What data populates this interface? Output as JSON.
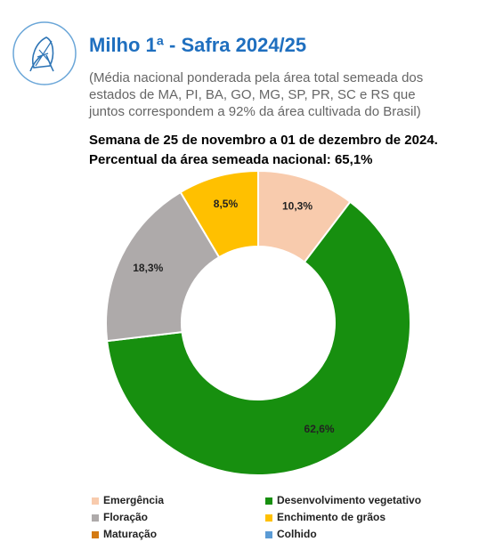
{
  "header": {
    "title": "Milho 1ª - Safra 2024/25",
    "subtitle_lines": [
      "(Média nacional ponderada pela área total semeada dos",
      "estados de MA, PI, BA, GO, MG, SP, PR, SC e RS que",
      "juntos correspondem a 92% da área cultivada do Brasil)"
    ]
  },
  "chart_data": {
    "type": "donut",
    "title": "Semana de 25 de novembro a 01 de dezembro de 2024.",
    "subtitle": "Percentual da área semeada nacional: 65,1%",
    "categories": [
      "Emergência",
      "Desenvolvimento vegetativo",
      "Floração",
      "Enchimento de grãos",
      "Maturação",
      "Colhido"
    ],
    "values": [
      10.3,
      62.6,
      18.3,
      8.5,
      0,
      0
    ],
    "value_labels": [
      "10,3%",
      "62,6%",
      "18,3%",
      "8,5%",
      null,
      null
    ],
    "colors": [
      "#f8cbad",
      "#178f0f",
      "#aeaaaa",
      "#ffc000",
      "#d47a12",
      "#5b9bd5"
    ]
  }
}
